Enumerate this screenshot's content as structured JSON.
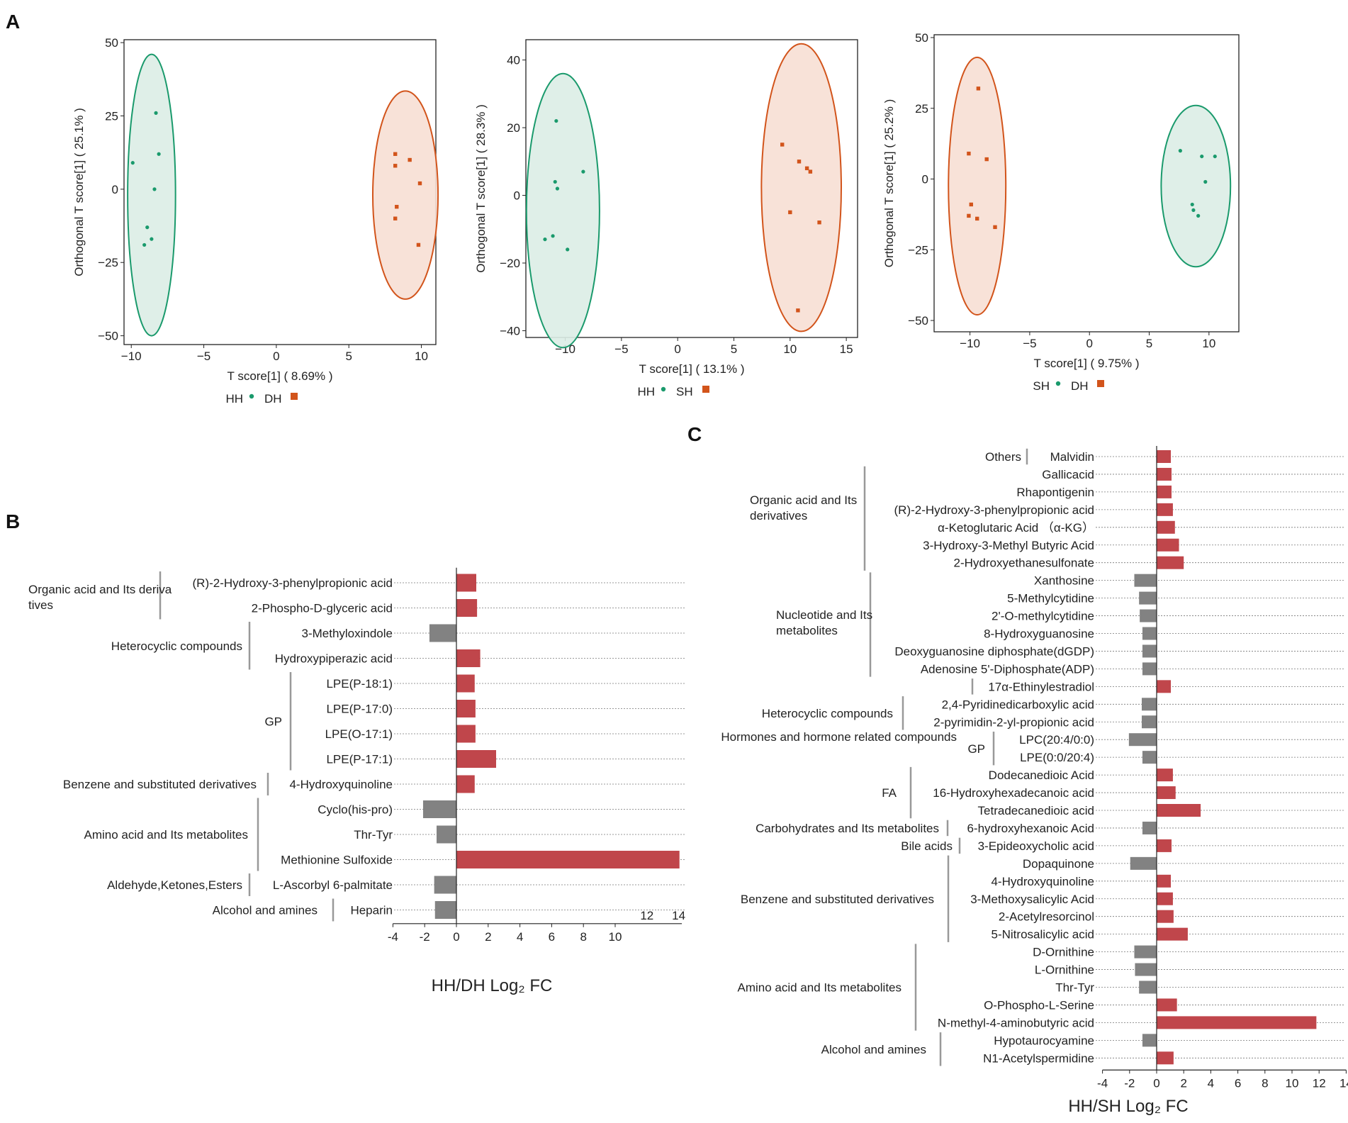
{
  "panels": {
    "a": "A",
    "b": "B",
    "c": "C"
  },
  "colors": {
    "green": "#1a9a6c",
    "orange": "#d2541b",
    "red_bar": "#c0464b",
    "gray_bar": "#828282",
    "green_fill": "#dcede6",
    "orange_fill": "#f7dfd4"
  },
  "chart_data": [
    {
      "type": "scatter",
      "id": "opls1",
      "xlabel": "T score[1] ( 8.69% )",
      "ylabel": "Orthogonal T score[1] ( 25.1% )",
      "xlim": [
        -10.5,
        11
      ],
      "ylim": [
        -53,
        51
      ],
      "xticks": [
        -10,
        -5,
        0,
        5,
        10
      ],
      "xtick_labels": [
        "−10",
        "−5",
        "0",
        "5",
        "10"
      ],
      "yticks": [
        50,
        25,
        0,
        -25,
        -50
      ],
      "ytick_labels": [
        "50",
        "25",
        "0",
        "−25",
        "−50"
      ],
      "legend": [
        "HH",
        "DH"
      ],
      "series": [
        {
          "name": "HH",
          "color": "green",
          "marker": "circle",
          "ellipse": {
            "cx": -8.6,
            "cy": -2,
            "rx": 1.65,
            "ry": 48
          },
          "points": [
            [
              -9.9,
              9
            ],
            [
              -8.3,
              26
            ],
            [
              -8.1,
              12
            ],
            [
              -8.4,
              0
            ],
            [
              -8.6,
              -17
            ],
            [
              -8.9,
              -13
            ],
            [
              -9.1,
              -19
            ]
          ]
        },
        {
          "name": "DH",
          "color": "orange",
          "marker": "square",
          "ellipse": {
            "cx": 8.9,
            "cy": -2,
            "rx": 2.25,
            "ry": 35.5
          },
          "points": [
            [
              8.2,
              12
            ],
            [
              8.2,
              8
            ],
            [
              9.2,
              10
            ],
            [
              9.9,
              2
            ],
            [
              8.3,
              -6
            ],
            [
              8.2,
              -10
            ],
            [
              9.8,
              -19
            ]
          ]
        }
      ]
    },
    {
      "type": "scatter",
      "id": "opls2",
      "xlabel": "T score[1] ( 13.1% )",
      "ylabel": "Orthogonal T score[1] ( 28.3% )",
      "xlim": [
        -13.5,
        16
      ],
      "ylim": [
        -42,
        46
      ],
      "xticks": [
        -10,
        -5,
        0,
        5,
        10,
        15
      ],
      "xtick_labels": [
        "−10",
        "−5",
        "0",
        "5",
        "10",
        "15"
      ],
      "yticks": [
        40,
        20,
        0,
        -20,
        -40
      ],
      "ytick_labels": [
        "40",
        "20",
        "0",
        "−20",
        "−40"
      ],
      "legend": [
        "HH",
        "SH"
      ],
      "series": [
        {
          "name": "HH",
          "color": "green",
          "marker": "circle",
          "ellipse": {
            "cx": -10.2,
            "cy": -4.5,
            "rx": 3.25,
            "ry": 40.5
          },
          "points": [
            [
              -10.8,
              22
            ],
            [
              -10.9,
              4
            ],
            [
              -10.7,
              2
            ],
            [
              -8.4,
              7
            ],
            [
              -11.8,
              -13
            ],
            [
              -11.1,
              -12
            ],
            [
              -9.8,
              -16
            ]
          ]
        },
        {
          "name": "SH",
          "color": "orange",
          "marker": "square",
          "ellipse": {
            "cx": 11,
            "cy": 2.3,
            "rx": 3.55,
            "ry": 42.5
          },
          "points": [
            [
              9.3,
              15
            ],
            [
              10.8,
              10
            ],
            [
              11.5,
              8
            ],
            [
              11.8,
              7
            ],
            [
              10,
              -5
            ],
            [
              12.6,
              -8
            ],
            [
              10.7,
              -34
            ]
          ]
        }
      ]
    },
    {
      "type": "scatter",
      "id": "opls3",
      "xlabel": "T score[1] ( 9.75% )",
      "ylabel": "Orthogonal T score[1] ( 25.2% )",
      "xlim": [
        -13,
        12.5
      ],
      "ylim": [
        -54,
        51
      ],
      "xticks": [
        -10,
        -5,
        0,
        5,
        10
      ],
      "xtick_labels": [
        "−10",
        "−5",
        "0",
        "5",
        "10"
      ],
      "yticks": [
        50,
        25,
        0,
        -25,
        -50
      ],
      "ytick_labels": [
        "50",
        "25",
        "0",
        "−25",
        "−50"
      ],
      "legend": [
        "SH",
        "DH"
      ],
      "series": [
        {
          "name": "SH",
          "color": "green",
          "marker": "circle",
          "ellipse": {
            "cx": 8.9,
            "cy": -2.5,
            "rx": 2.9,
            "ry": 28.5
          },
          "points": [
            [
              7.6,
              10
            ],
            [
              9.4,
              8
            ],
            [
              10.5,
              8
            ],
            [
              9.7,
              -1
            ],
            [
              8.6,
              -9
            ],
            [
              8.7,
              -11
            ],
            [
              9.1,
              -13
            ]
          ]
        },
        {
          "name": "DH",
          "color": "orange",
          "marker": "square",
          "ellipse": {
            "cx": -9.4,
            "cy": -2.5,
            "rx": 2.4,
            "ry": 45.5
          },
          "points": [
            [
              -9.3,
              32
            ],
            [
              -10.1,
              9
            ],
            [
              -8.6,
              7
            ],
            [
              -9.9,
              -9
            ],
            [
              -10.1,
              -13
            ],
            [
              -9.4,
              -14
            ],
            [
              -7.9,
              -17
            ]
          ]
        }
      ]
    },
    {
      "type": "bar",
      "orientation": "horizontal",
      "id": "b",
      "xlabel": "HH/DH Log₂ FC",
      "xlim": [
        -4,
        14.2
      ],
      "xticks": [
        -4,
        -2,
        0,
        2,
        4,
        6,
        8,
        10
      ],
      "xtick_labels": [
        "-4",
        "-2",
        "0",
        "2",
        "4",
        "6",
        "8",
        "10"
      ],
      "extra_ticks": [
        12,
        14
      ],
      "extra_tick_labels": [
        "12",
        "14"
      ],
      "categories": [
        "(R)-2-Hydroxy-3-phenylpropionic acid",
        "2-Phospho-D-glyceric acid",
        "3-Methyloxindole",
        "Hydroxypiperazic acid",
        "LPE(P-18:1)",
        "LPE(P-17:0)",
        "LPE(O-17:1)",
        "LPE(P-17:1)",
        "4-Hydroxyquinoline",
        "Cyclo(his-pro)",
        "Thr-Tyr",
        "Methionine Sulfoxide",
        "L-Ascorbyl 6-palmitate",
        "Heparin"
      ],
      "values": [
        1.25,
        1.3,
        -1.7,
        1.5,
        1.15,
        1.2,
        1.2,
        2.5,
        1.15,
        -2.1,
        -1.25,
        14.05,
        -1.4,
        -1.35
      ],
      "groups": [
        {
          "name": "Organic acid and Its derivatives",
          "from": 0,
          "to": 1
        },
        {
          "name": "Heterocyclic compounds",
          "from": 2,
          "to": 3
        },
        {
          "name": "GP",
          "from": 4,
          "to": 7
        },
        {
          "name": "Benzene and substituted derivatives",
          "from": 8,
          "to": 8
        },
        {
          "name": "Amino acid and Its metabolites",
          "from": 9,
          "to": 11
        },
        {
          "name": "Aldehyde,Ketones,Esters",
          "from": 12,
          "to": 12
        },
        {
          "name": "Alcohol and amines",
          "from": 13,
          "to": 13
        }
      ]
    },
    {
      "type": "bar",
      "orientation": "horizontal",
      "id": "c",
      "xlabel": "HH/SH  Log₂ FC",
      "xlim": [
        -4,
        14
      ],
      "xticks": [
        -4,
        -2,
        0,
        2,
        4,
        6,
        8,
        10,
        12,
        14
      ],
      "xtick_labels": [
        "-4",
        "-2",
        "0",
        "2",
        "4",
        "6",
        "8",
        "10",
        "12",
        "14"
      ],
      "categories": [
        "Malvidin",
        "Gallicacid",
        "Rhapontigenin",
        "(R)-2-Hydroxy-3-phenylpropionic acid",
        "α-Ketoglutaric Acid （α-KG）",
        "3-Hydroxy-3-Methyl Butyric Acid",
        "2-Hydroxyethanesulfonate",
        "Xanthosine",
        "5-Methylcytidine",
        "2'-O-methylcytidine",
        "8-Hydroxyguanosine",
        "Deoxyguanosine diphosphate(dGDP)",
        "Adenosine 5'-Diphosphate(ADP)",
        "17α-Ethinylestradiol",
        "2,4-Pyridinedicarboxylic acid",
        "2-pyrimidin-2-yl-propionic acid",
        "LPC(20:4/0:0)",
        "LPE(0:0/20:4)",
        "Dodecanedioic Acid",
        "16-Hydroxyhexadecanoic acid",
        "Tetradecanedioic acid",
        "6-hydroxyhexanoic Acid",
        "3-Epideoxycholic acid",
        "Dopaquinone",
        "4-Hydroxyquinoline",
        "3-Methoxysalicylic Acid",
        "2-Acetylresorcinol",
        "5-Nitrosalicylic acid",
        "D-Ornithine",
        "L-Ornithine",
        "Thr-Tyr",
        "O-Phospho-L-Serine",
        "N-methyl-4-aminobutyric acid",
        "Hypotaurocyamine",
        "N1-Acetylspermidine"
      ],
      "values": [
        1.05,
        1.1,
        1.1,
        1.2,
        1.35,
        1.65,
        2.0,
        -1.65,
        -1.3,
        -1.25,
        -1.05,
        -1.05,
        -1.05,
        1.05,
        -1.1,
        -1.1,
        -2.05,
        -1.05,
        1.2,
        1.4,
        3.25,
        -1.05,
        1.1,
        -1.95,
        1.05,
        1.2,
        1.25,
        2.3,
        -1.65,
        -1.6,
        -1.3,
        1.5,
        11.8,
        -1.05,
        1.25
      ],
      "groups": [
        {
          "name": "Others",
          "from": 0,
          "to": 0
        },
        {
          "name": "Organic acid and Its derivatives",
          "from": 1,
          "to": 6
        },
        {
          "name": "Nucleotide and Its metabolites",
          "from": 7,
          "to": 12
        },
        {
          "name": "Hormones and hormone related compounds",
          "from": 13,
          "to": 13
        },
        {
          "name": "Heterocyclic compounds",
          "from": 14,
          "to": 15
        },
        {
          "name": "GP",
          "from": 16,
          "to": 17
        },
        {
          "name": "FA",
          "from": 18,
          "to": 20
        },
        {
          "name": "Carbohydrates and Its metabolites",
          "from": 21,
          "to": 21
        },
        {
          "name": "Bile acids",
          "from": 22,
          "to": 22
        },
        {
          "name": "Benzene and substituted derivatives",
          "from": 23,
          "to": 27
        },
        {
          "name": "Amino acid and Its metabolites",
          "from": 28,
          "to": 32
        },
        {
          "name": "Alcohol and amines",
          "from": 33,
          "to": 34
        }
      ]
    }
  ]
}
